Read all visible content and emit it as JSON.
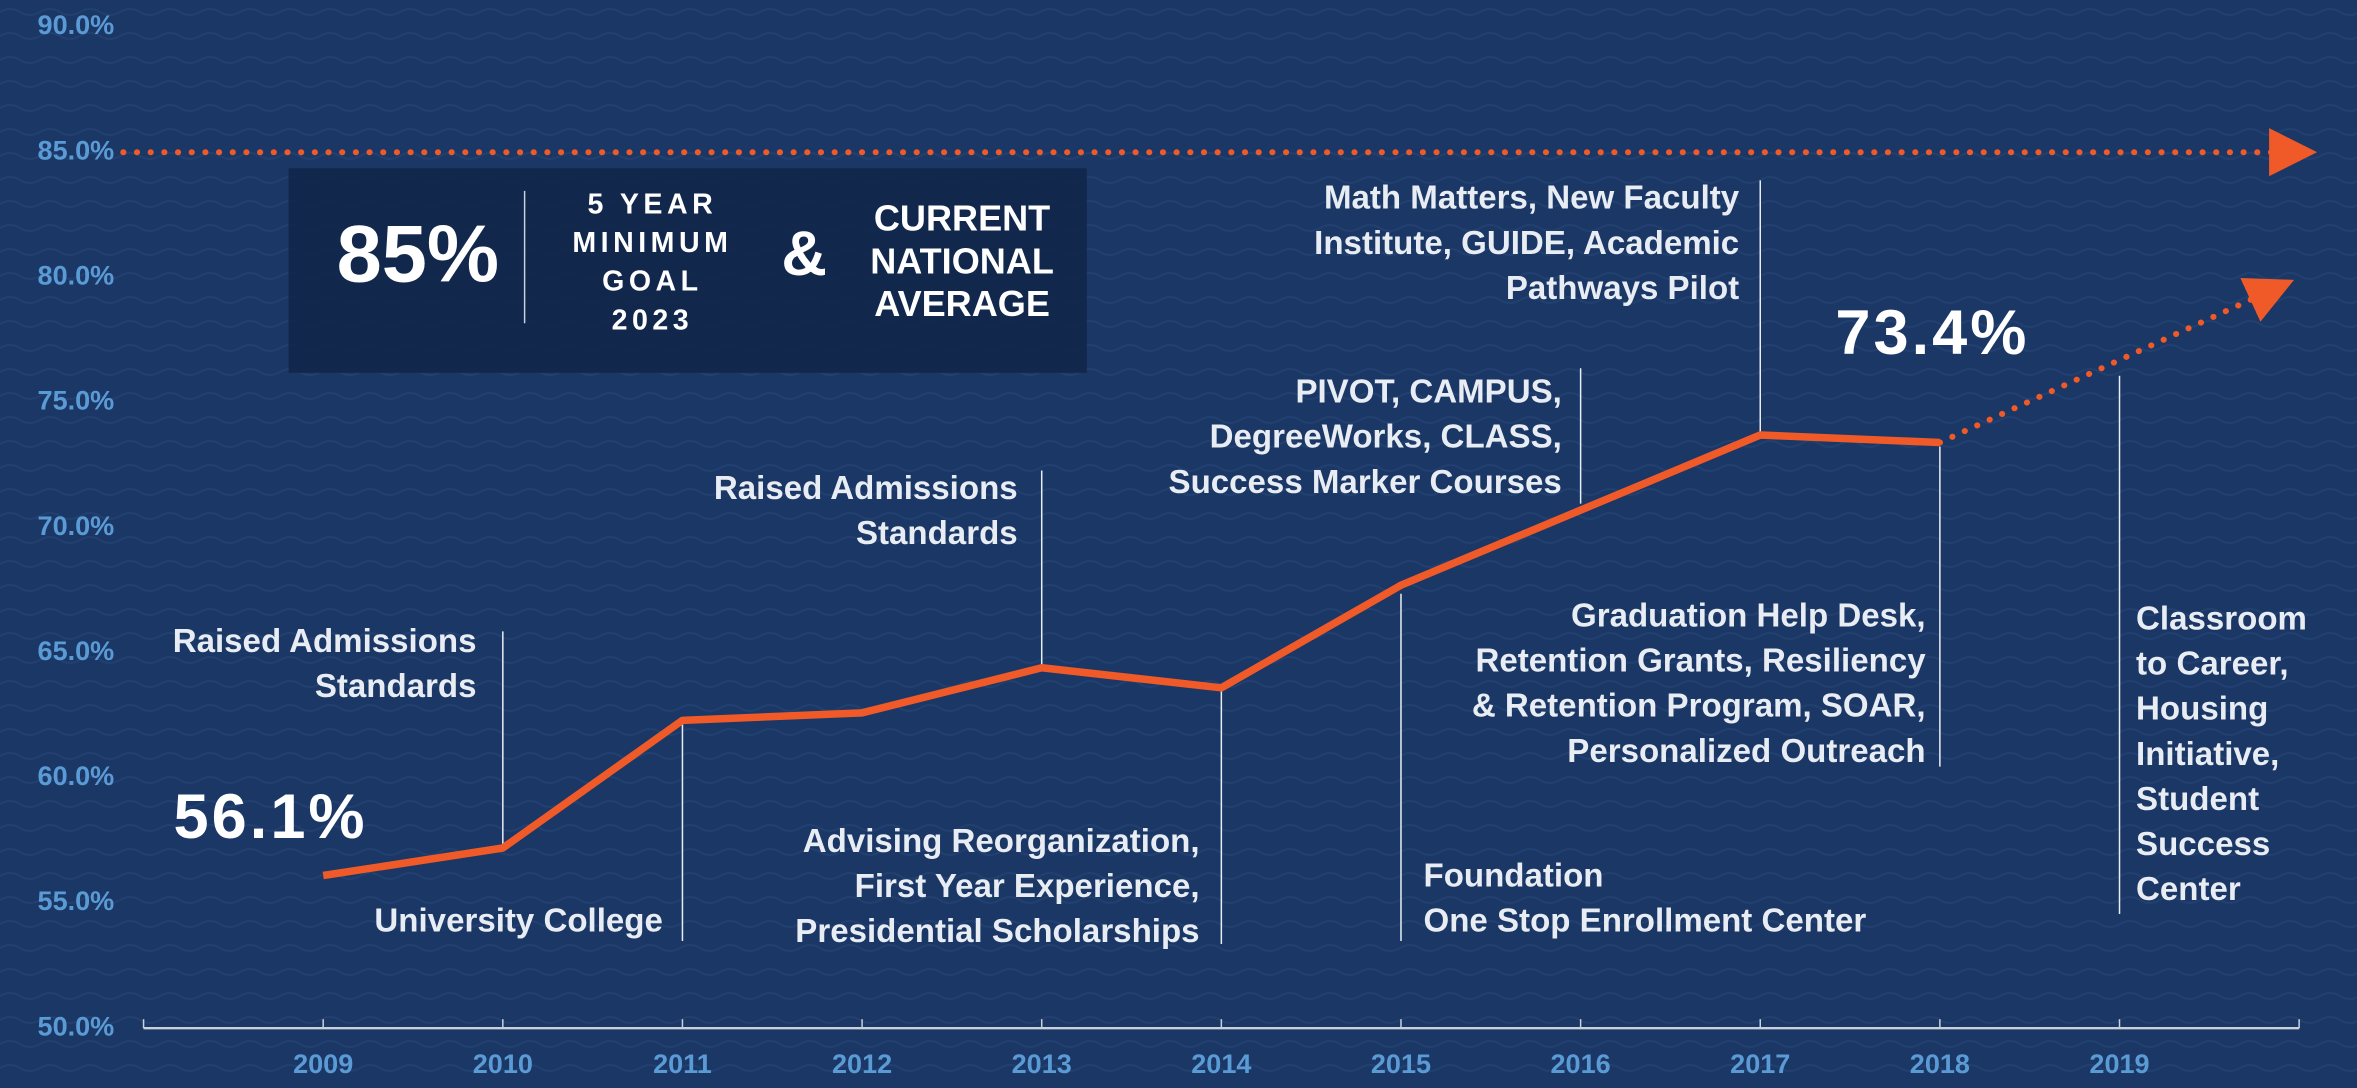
{
  "chart_data": {
    "type": "line",
    "x": [
      2009,
      2010,
      2011,
      2012,
      2013,
      2014,
      2015,
      2016,
      2017,
      2018
    ],
    "series": [
      {
        "color": "#f05a28",
        "values": [
          56.1,
          57.2,
          62.3,
          62.6,
          64.4,
          63.6,
          67.7,
          70.7,
          73.7,
          73.4
        ],
        "value_labels": [
          "56.1%",
          null,
          null,
          null,
          null,
          null,
          null,
          null,
          null,
          "73.4%"
        ]
      }
    ],
    "projection": {
      "color": "#f05a28",
      "x": [
        2018,
        2019.85
      ],
      "values": [
        73.4,
        79.5
      ]
    },
    "goal_line": 85,
    "xlim": [
      2008,
      2020
    ],
    "xticks": [
      2009,
      2010,
      2011,
      2012,
      2013,
      2014,
      2015,
      2016,
      2017,
      2018,
      2019
    ],
    "ylim": [
      50,
      90
    ],
    "yticks": [
      {
        "value": 50,
        "label": "50.0%"
      },
      {
        "value": 55,
        "label": "55.0%"
      },
      {
        "value": 60,
        "label": "60.0%"
      },
      {
        "value": 65,
        "label": "65.0%"
      },
      {
        "value": 70,
        "label": "70.0%"
      },
      {
        "value": 75,
        "label": "75.0%"
      },
      {
        "value": 80,
        "label": "80.0%"
      },
      {
        "value": 85,
        "label": "85.0%"
      },
      {
        "value": 90,
        "label": "90.0%"
      }
    ],
    "goal_box": {
      "big": "85%",
      "goal_lines": [
        "5 YEAR",
        "MINIMUM",
        "GOAL",
        "2023"
      ],
      "amp": "&",
      "national_lines": [
        "CURRENT",
        "NATIONAL",
        "AVERAGE"
      ]
    },
    "annotations": [
      {
        "lines": [
          "Raised Admissions",
          "Standards"
        ]
      },
      {
        "lines": [
          "University College"
        ]
      },
      {
        "lines": [
          "Raised Admissions",
          "Standards"
        ]
      },
      {
        "lines": [
          "Advising Reorganization,",
          "First Year Experience,",
          "Presidential Scholarships"
        ]
      },
      {
        "lines": [
          "PIVOT, CAMPUS,",
          "DegreeWorks, CLASS,",
          "Success Marker Courses"
        ]
      },
      {
        "lines": [
          "Math Matters, New Faculty",
          "Institute, GUIDE, Academic",
          "Pathways Pilot"
        ]
      },
      {
        "lines": [
          "Foundation",
          "One Stop Enrollment Center"
        ]
      },
      {
        "lines": [
          "Graduation Help Desk,",
          "Retention Grants, Resiliency",
          "& Retention Program, SOAR,",
          "Personalized Outreach"
        ]
      },
      {
        "lines": [
          "Classroom",
          "to Career,",
          "Housing",
          "Initiative,",
          "Student",
          "Success",
          "Center"
        ]
      }
    ]
  }
}
